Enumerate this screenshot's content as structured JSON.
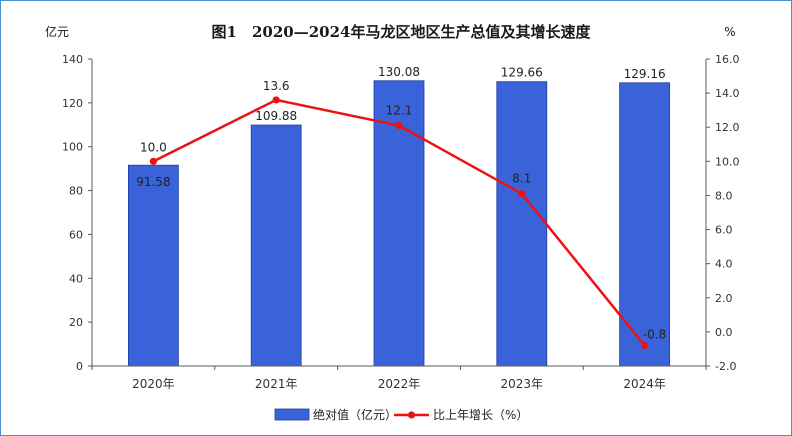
{
  "chart_data": {
    "type": "bar",
    "title": "图1　2020—2024年马龙区地区生产总值及其增长速度",
    "categories": [
      "2020年",
      "2021年",
      "2022年",
      "2023年",
      "2024年"
    ],
    "y_left": {
      "unit": "亿元",
      "range": [
        0,
        140
      ],
      "ticks": [
        "0",
        "20",
        "40",
        "60",
        "80",
        "100",
        "120",
        "140"
      ]
    },
    "y_right": {
      "unit": "%",
      "range": [
        -2.0,
        16.0
      ],
      "ticks": [
        "-2.0",
        "0.0",
        "2.0",
        "4.0",
        "6.0",
        "8.0",
        "10.0",
        "12.0",
        "14.0",
        "16.0"
      ]
    },
    "series": [
      {
        "name": "绝对值（亿元）",
        "type": "bar",
        "axis": "left",
        "color": "#3a63d9",
        "values": [
          91.58,
          109.88,
          130.08,
          129.66,
          129.16
        ],
        "labels": [
          "91.58",
          "109.88",
          "130.08",
          "129.66",
          "129.16"
        ]
      },
      {
        "name": "比上年增长（%）",
        "type": "line",
        "axis": "right",
        "color": "#ee1111",
        "values": [
          10.0,
          13.6,
          12.1,
          8.1,
          -0.8
        ],
        "labels": [
          "10.0",
          "13.6",
          "12.1",
          "8.1",
          "-0.8"
        ]
      }
    ],
    "grid": false,
    "legend": "bottom-center"
  }
}
